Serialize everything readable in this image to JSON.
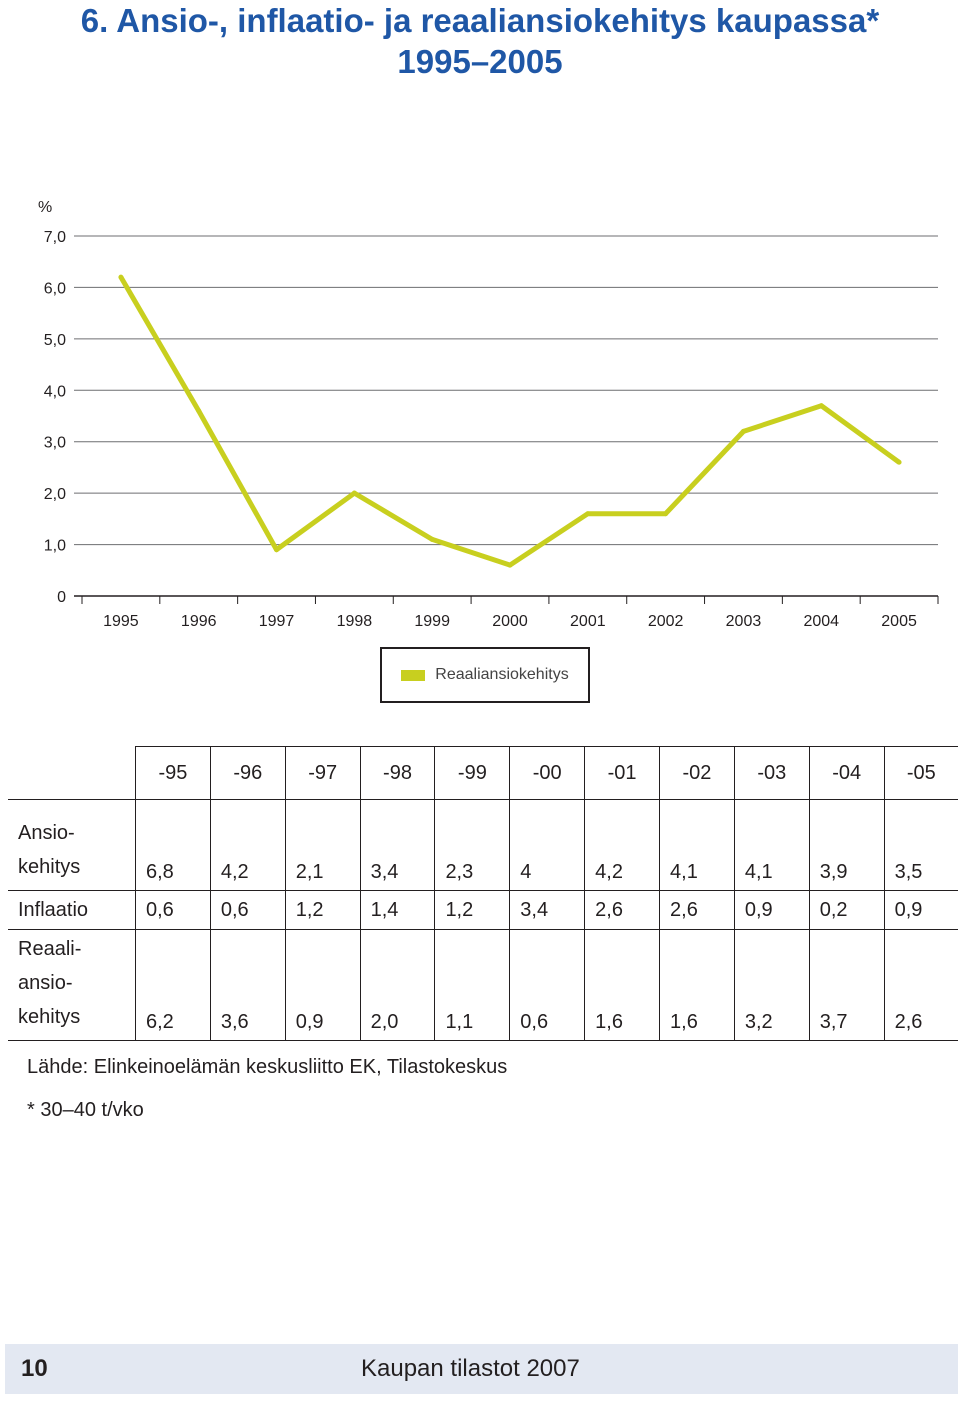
{
  "page": {
    "title_line1": "6. Ansio-, inflaatio- ja reaaliansiokehitys kaupassa*",
    "title_line2": "1995–2005",
    "source": "Lähde: Elinkeinoelämän keskusliitto EK, Tilastokeskus",
    "note": "*  30–40 t/vko",
    "footer_page": "10",
    "footer_publication": "Kaupan tilastot 2007"
  },
  "chart_data": {
    "type": "line",
    "y_unit": "%",
    "x": [
      "1995",
      "1996",
      "1997",
      "1998",
      "1999",
      "2000",
      "2001",
      "2002",
      "2003",
      "2004",
      "2005"
    ],
    "series": [
      {
        "name": "Reaaliansiokehitys",
        "color": "#c8cf1f",
        "values": [
          6.2,
          3.6,
          0.9,
          2.0,
          1.1,
          0.6,
          1.6,
          1.6,
          3.2,
          3.7,
          2.6
        ]
      }
    ],
    "yticks": [
      "0",
      "1,0",
      "2,0",
      "3,0",
      "4,0",
      "5,0",
      "6,0",
      "7,0"
    ],
    "ylim": [
      0,
      7
    ],
    "grid": true,
    "legend_position": "bottom-center"
  },
  "table": {
    "headers": [
      "-95",
      "-96",
      "-97",
      "-98",
      "-99",
      "-00",
      "-01",
      "-02",
      "-03",
      "-04",
      "-05"
    ],
    "rows": [
      {
        "label_lines": [
          "Ansio-",
          "kehitys"
        ],
        "values": [
          "6,8",
          "4,2",
          "2,1",
          "3,4",
          "2,3",
          "4",
          "4,2",
          "4,1",
          "4,1",
          "3,9",
          "3,5"
        ]
      },
      {
        "label_lines": [
          "Inflaatio"
        ],
        "values": [
          "0,6",
          "0,6",
          "1,2",
          "1,4",
          "1,2",
          "3,4",
          "2,6",
          "2,6",
          "0,9",
          "0,2",
          "0,9"
        ]
      },
      {
        "label_lines": [
          "Reaali-",
          "ansio-",
          "kehitys"
        ],
        "values": [
          "6,2",
          "3,6",
          "0,9",
          "2,0",
          "1,1",
          "0,6",
          "1,6",
          "1,6",
          "3,2",
          "3,7",
          "2,6"
        ]
      }
    ]
  }
}
